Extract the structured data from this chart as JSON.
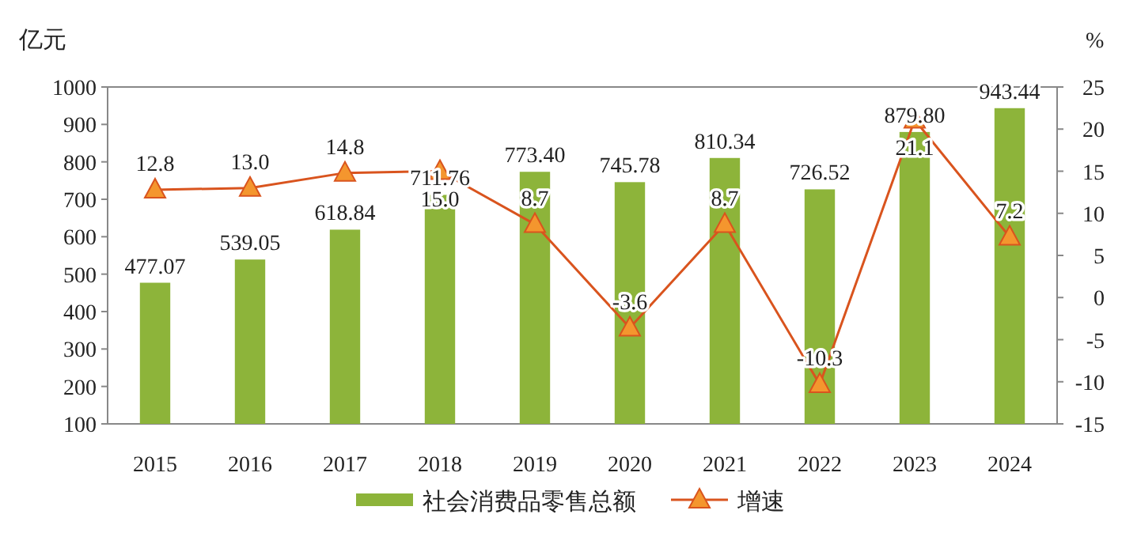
{
  "chart_data": {
    "type": "bar",
    "ylabel": "亿元",
    "y2label": "%",
    "categories": [
      "2015",
      "2016",
      "2017",
      "2018",
      "2019",
      "2020",
      "2021",
      "2022",
      "2023",
      "2024"
    ],
    "ylim": [
      100,
      1000
    ],
    "yticks": [
      100,
      200,
      300,
      400,
      500,
      600,
      700,
      800,
      900,
      1000
    ],
    "y2lim": [
      -15,
      25
    ],
    "y2ticks": [
      -15,
      -10,
      -5,
      0,
      5,
      10,
      15,
      20,
      25
    ],
    "legend": "bottom",
    "marker": "triangle",
    "series": [
      {
        "name": "社会消费品零售总额",
        "color": "#8db43a",
        "values": [
          477.07,
          539.05,
          618.84,
          711.76,
          773.4,
          745.78,
          810.34,
          726.52,
          879.8,
          943.44
        ],
        "value_labels": [
          "477.07",
          "539.05",
          "618.84",
          "711.76",
          "773.40",
          "745.78",
          "810.34",
          "726.52",
          "879.80",
          "943.44"
        ]
      },
      {
        "name": "增速",
        "type": "line",
        "axis": "y2",
        "color": "#d9541e",
        "values": [
          12.8,
          13.0,
          14.8,
          15.0,
          8.7,
          -3.6,
          8.7,
          -10.3,
          21.1,
          7.2
        ],
        "value_labels": [
          "12.8",
          "13.0",
          "14.8",
          "15.0",
          "8.7",
          "-3.6",
          "8.7",
          "-10.3",
          "21.1",
          "7.2"
        ]
      }
    ]
  }
}
